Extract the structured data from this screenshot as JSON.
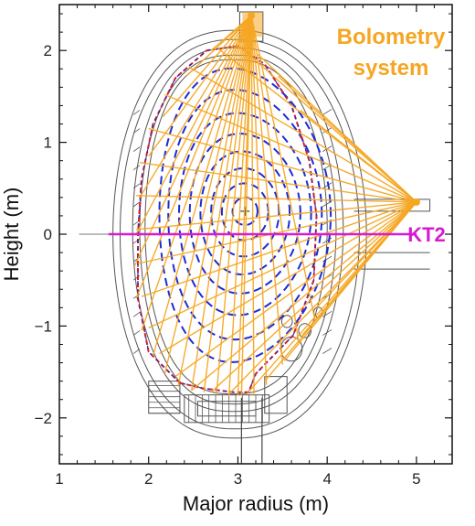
{
  "chart_data": {
    "type": "other",
    "xlabel": "Major radius (m)",
    "ylabel": "Height (m)",
    "xlim": [
      1.0,
      5.4
    ],
    "ylim": [
      -2.5,
      2.5
    ],
    "xticks": [
      1,
      2,
      3,
      4,
      5
    ],
    "yticks": [
      -2,
      -1,
      0,
      1,
      2
    ],
    "annotations": {
      "bolometry_line1": "Bolometry",
      "bolometry_line2": "system",
      "chord_label": "KT2"
    },
    "colors": {
      "bolometry": "#f5a623",
      "chord": "#d81bd0",
      "flux_surfaces": "#1a2bd6",
      "separatrix": "#d0202a",
      "vessel": "#555555"
    },
    "magnetic_axis": {
      "R": 3.08,
      "Z": 0.25
    },
    "separatrix": [
      [
        2.35,
        -1.62
      ],
      [
        2.0,
        -1.28
      ],
      [
        1.88,
        -0.7
      ],
      [
        1.88,
        0.0
      ],
      [
        1.92,
        0.6
      ],
      [
        2.05,
        1.2
      ],
      [
        2.3,
        1.7
      ],
      [
        2.65,
        2.0
      ],
      [
        3.0,
        2.05
      ],
      [
        3.3,
        1.85
      ],
      [
        3.6,
        1.4
      ],
      [
        3.8,
        0.8
      ],
      [
        3.88,
        0.2
      ],
      [
        3.85,
        -0.5
      ],
      [
        3.62,
        -1.1
      ],
      [
        3.2,
        -1.52
      ],
      [
        3.12,
        -1.72
      ],
      [
        2.95,
        -1.72
      ],
      [
        2.62,
        -1.68
      ],
      [
        2.35,
        -1.62
      ]
    ],
    "flux_contours": [
      {
        "dR": 0.14,
        "dZ": 0.15
      },
      {
        "dR": 0.26,
        "dZ": 0.31
      },
      {
        "dR": 0.38,
        "dZ": 0.48
      },
      {
        "dR": 0.5,
        "dZ": 0.67
      },
      {
        "dR": 0.62,
        "dZ": 0.87
      },
      {
        "dR": 0.74,
        "dZ": 1.1
      },
      {
        "dR": 0.86,
        "dZ": 1.36
      },
      {
        "dR": 0.96,
        "dZ": 1.6
      }
    ],
    "bolometer_cameras": [
      {
        "position": "top",
        "R": 3.15,
        "Z": 2.38,
        "chord_ends": [
          [
            2.33,
            -1.66
          ],
          [
            2.48,
            -1.7
          ],
          [
            2.62,
            -1.72
          ],
          [
            2.76,
            -1.74
          ],
          [
            2.9,
            -1.76
          ],
          [
            3.04,
            -1.76
          ],
          [
            3.18,
            -1.76
          ],
          [
            3.32,
            -1.64
          ],
          [
            3.5,
            -1.42
          ],
          [
            3.68,
            -1.18
          ],
          [
            3.86,
            -0.92
          ],
          [
            2.18,
            -1.52
          ],
          [
            2.05,
            -1.32
          ],
          [
            1.92,
            -1.05
          ],
          [
            1.86,
            -0.7
          ],
          [
            1.84,
            -0.35
          ],
          [
            1.86,
            0.0
          ],
          [
            1.9,
            0.4
          ],
          [
            2.0,
            0.85
          ],
          [
            2.16,
            1.28
          ],
          [
            2.42,
            1.72
          ],
          [
            2.7,
            2.0
          ],
          [
            2.9,
            2.12
          ],
          [
            3.0,
            -1.76
          ]
        ]
      },
      {
        "position": "outboard",
        "R": 5.0,
        "Z": 0.35,
        "chord_ends": [
          [
            2.78,
            2.02
          ],
          [
            2.45,
            1.82
          ],
          [
            2.18,
            1.52
          ],
          [
            2.0,
            1.15
          ],
          [
            1.9,
            0.78
          ],
          [
            1.86,
            0.42
          ],
          [
            1.86,
            0.05
          ],
          [
            1.88,
            -0.32
          ],
          [
            1.92,
            -0.68
          ],
          [
            2.0,
            -1.02
          ],
          [
            2.12,
            -1.3
          ],
          [
            2.3,
            -1.55
          ],
          [
            2.48,
            -1.7
          ],
          [
            2.7,
            -1.72
          ],
          [
            2.9,
            -1.74
          ],
          [
            3.1,
            -1.74
          ],
          [
            3.3,
            -1.6
          ],
          [
            3.52,
            -1.38
          ],
          [
            3.72,
            -1.1
          ],
          [
            3.88,
            -0.8
          ],
          [
            3.0,
            2.06
          ],
          [
            3.22,
            1.96
          ],
          [
            3.45,
            1.72
          ],
          [
            3.7,
            1.35
          ]
        ]
      }
    ],
    "kt2_chord": {
      "R_start": 1.55,
      "R_end": 5.0,
      "Z": 0.0
    }
  }
}
